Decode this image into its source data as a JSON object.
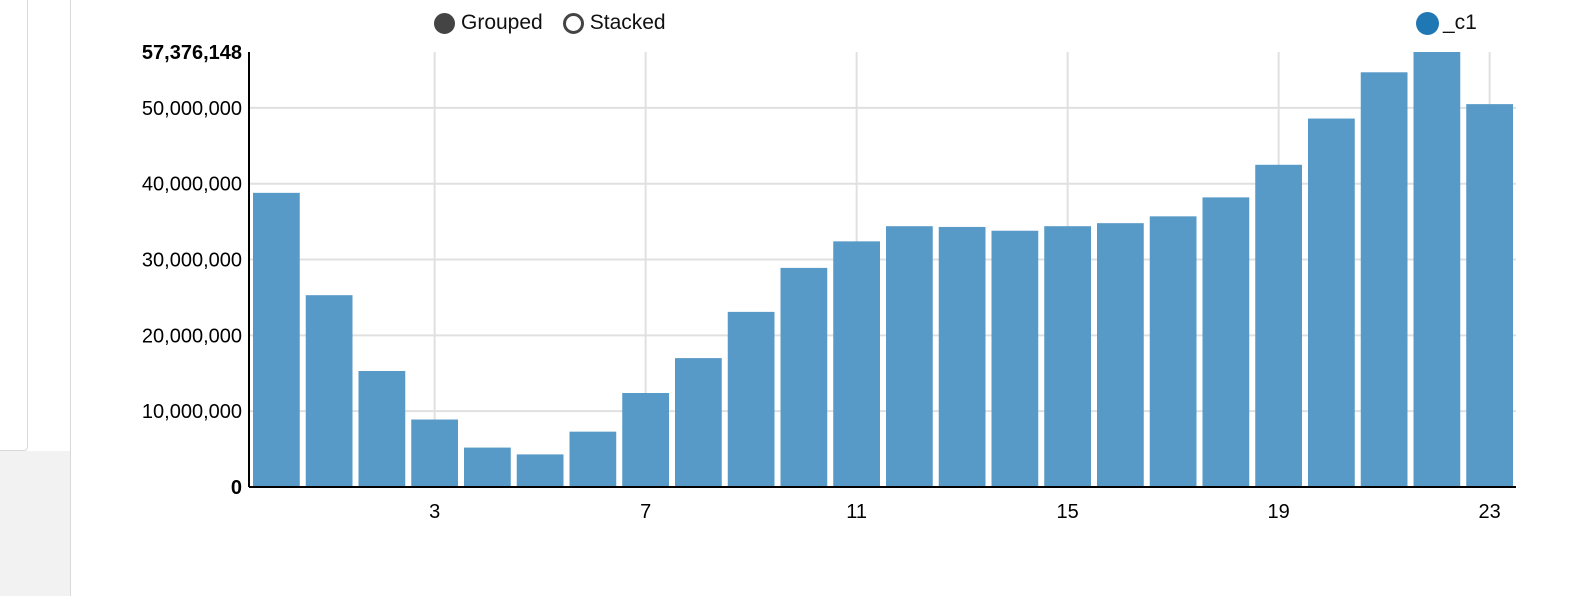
{
  "controls": {
    "grouped_label": "Grouped",
    "stacked_label": "Stacked",
    "selected": "grouped"
  },
  "legend": {
    "series_name": "_c1"
  },
  "colors": {
    "bar": "#5799c7",
    "legend_dot": "#1f77b4",
    "radio": "#444444",
    "grid": "#e0e0e0",
    "axis": "#000000"
  },
  "chart_data": {
    "type": "bar",
    "mode": "grouped",
    "categories": [
      0,
      1,
      2,
      3,
      4,
      5,
      6,
      7,
      8,
      9,
      10,
      11,
      12,
      13,
      14,
      15,
      16,
      17,
      18,
      19,
      20,
      21,
      22,
      23
    ],
    "x_tick_labels": [
      "3",
      "7",
      "11",
      "15",
      "19",
      "23"
    ],
    "series": [
      {
        "name": "_c1",
        "values": [
          38800000,
          25300000,
          15300000,
          8900000,
          5200000,
          4300000,
          7300000,
          12400000,
          17000000,
          23100000,
          28900000,
          32400000,
          34400000,
          34300000,
          33800000,
          34400000,
          34800000,
          35700000,
          38200000,
          42500000,
          48600000,
          54700000,
          57376148,
          50500000
        ]
      }
    ],
    "y_ticks": [
      "0",
      "10,000,000",
      "20,000,000",
      "30,000,000",
      "40,000,000",
      "50,000,000",
      "57,376,148"
    ],
    "ylim": [
      0,
      57376148
    ],
    "grid": true,
    "legend_position": "top-right"
  }
}
